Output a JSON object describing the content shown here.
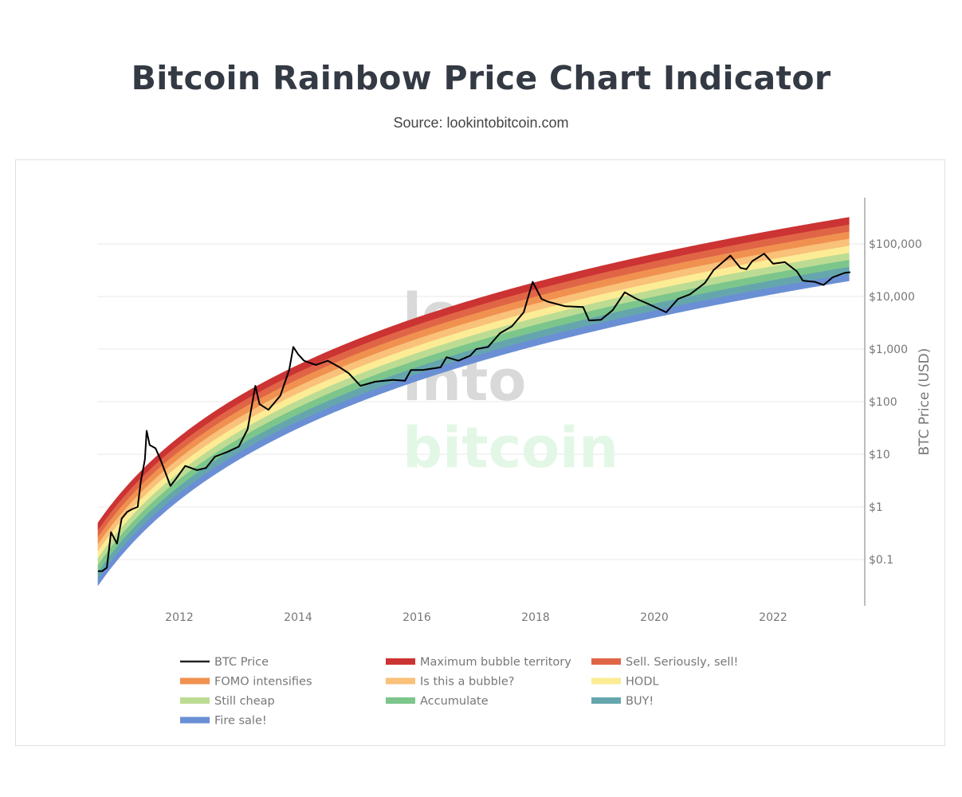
{
  "header": {
    "title": "Bitcoin Rainbow Price Chart Indicator",
    "source": "Source: lookintobitcoin.com"
  },
  "watermark": {
    "logo_text": [
      "look",
      "into",
      "bitcoin"
    ],
    "colors": [
      "#d9d9d9",
      "#d9d9d9",
      "#e3f7e6"
    ]
  },
  "chart_data": {
    "type": "area",
    "title": "",
    "ylabel": "BTC Price (USD)",
    "xlabel": "",
    "y_scale": "log",
    "ylim": [
      0.013,
      760000
    ],
    "xlim": [
      2010.63,
      2023.3
    ],
    "y_ticks": [
      {
        "value": 100000,
        "label": "$100,000"
      },
      {
        "value": 10000,
        "label": "$10,000"
      },
      {
        "value": 1000,
        "label": "$1,000"
      },
      {
        "value": 100,
        "label": "$100"
      },
      {
        "value": 10,
        "label": "$10"
      },
      {
        "value": 1,
        "label": "$1"
      },
      {
        "value": 0.1,
        "label": "$0.1"
      }
    ],
    "x_ticks": [
      {
        "value": 2012,
        "label": "2012"
      },
      {
        "value": 2014,
        "label": "2014"
      },
      {
        "value": 2016,
        "label": "2016"
      },
      {
        "value": 2018,
        "label": "2018"
      },
      {
        "value": 2020,
        "label": "2020"
      },
      {
        "value": 2022,
        "label": "2022"
      }
    ],
    "grid": "horizontal",
    "legend_position": "bottom",
    "bands": [
      {
        "name": "Fire sale!",
        "color": "#6a8fd4"
      },
      {
        "name": "BUY!",
        "color": "#65a6ad"
      },
      {
        "name": "Accumulate",
        "color": "#7cc68c"
      },
      {
        "name": "Still cheap",
        "color": "#bddc93"
      },
      {
        "name": "HODL",
        "color": "#fcec95"
      },
      {
        "name": "Is this a bubble?",
        "color": "#f9c17a"
      },
      {
        "name": "FOMO intensifies",
        "color": "#f09150"
      },
      {
        "name": "Sell. Seriously, sell!",
        "color": "#e06546"
      },
      {
        "name": "Maximum bubble territory",
        "color": "#cc3333"
      }
    ],
    "band_lower_edge": [
      [
        2010.63,
        0.033
      ],
      [
        2012,
        1.3
      ],
      [
        2014,
        30
      ],
      [
        2016,
        250
      ],
      [
        2018,
        1200
      ],
      [
        2020,
        4000
      ],
      [
        2022,
        11000
      ],
      [
        2023.3,
        20000
      ]
    ],
    "band_upper_edge": [
      [
        2010.63,
        0.51
      ],
      [
        2012,
        21
      ],
      [
        2014,
        480
      ],
      [
        2016,
        4000
      ],
      [
        2018,
        19000
      ],
      [
        2020,
        64000
      ],
      [
        2022,
        175000
      ],
      [
        2023.3,
        330000
      ]
    ],
    "series": [
      {
        "name": "BTC Price",
        "color": "#000000",
        "points": [
          [
            2010.63,
            0.06
          ],
          [
            2010.7,
            0.06
          ],
          [
            2010.78,
            0.07
          ],
          [
            2010.85,
            0.33
          ],
          [
            2010.95,
            0.2
          ],
          [
            2011.03,
            0.6
          ],
          [
            2011.12,
            0.8
          ],
          [
            2011.2,
            0.9
          ],
          [
            2011.3,
            1.0
          ],
          [
            2011.35,
            3
          ],
          [
            2011.42,
            8
          ],
          [
            2011.45,
            28
          ],
          [
            2011.5,
            15
          ],
          [
            2011.6,
            13
          ],
          [
            2011.68,
            8
          ],
          [
            2011.75,
            5
          ],
          [
            2011.85,
            2.5
          ],
          [
            2011.95,
            3.5
          ],
          [
            2012.1,
            6
          ],
          [
            2012.3,
            5
          ],
          [
            2012.45,
            5.5
          ],
          [
            2012.6,
            9
          ],
          [
            2012.8,
            11
          ],
          [
            2013.0,
            14
          ],
          [
            2013.15,
            30
          ],
          [
            2013.28,
            200
          ],
          [
            2013.35,
            90
          ],
          [
            2013.5,
            70
          ],
          [
            2013.7,
            130
          ],
          [
            2013.85,
            400
          ],
          [
            2013.92,
            1100
          ],
          [
            2014.0,
            800
          ],
          [
            2014.1,
            600
          ],
          [
            2014.3,
            500
          ],
          [
            2014.5,
            600
          ],
          [
            2014.7,
            450
          ],
          [
            2014.85,
            350
          ],
          [
            2015.05,
            200
          ],
          [
            2015.3,
            240
          ],
          [
            2015.6,
            260
          ],
          [
            2015.8,
            250
          ],
          [
            2015.9,
            400
          ],
          [
            2016.1,
            400
          ],
          [
            2016.4,
            450
          ],
          [
            2016.5,
            700
          ],
          [
            2016.7,
            600
          ],
          [
            2016.9,
            750
          ],
          [
            2017.0,
            1000
          ],
          [
            2017.2,
            1100
          ],
          [
            2017.4,
            2000
          ],
          [
            2017.6,
            2700
          ],
          [
            2017.8,
            5000
          ],
          [
            2017.95,
            19000
          ],
          [
            2018.1,
            9000
          ],
          [
            2018.2,
            8000
          ],
          [
            2018.5,
            6500
          ],
          [
            2018.8,
            6300
          ],
          [
            2018.9,
            3500
          ],
          [
            2019.1,
            3600
          ],
          [
            2019.3,
            5500
          ],
          [
            2019.5,
            12000
          ],
          [
            2019.7,
            9000
          ],
          [
            2019.9,
            7200
          ],
          [
            2020.2,
            5000
          ],
          [
            2020.4,
            9000
          ],
          [
            2020.6,
            11000
          ],
          [
            2020.85,
            18000
          ],
          [
            2021.0,
            32000
          ],
          [
            2021.28,
            60000
          ],
          [
            2021.45,
            35000
          ],
          [
            2021.55,
            33000
          ],
          [
            2021.65,
            47000
          ],
          [
            2021.85,
            65000
          ],
          [
            2022.0,
            42000
          ],
          [
            2022.2,
            45000
          ],
          [
            2022.4,
            30000
          ],
          [
            2022.5,
            20000
          ],
          [
            2022.7,
            19000
          ],
          [
            2022.85,
            16500
          ],
          [
            2023.0,
            23000
          ],
          [
            2023.2,
            28000
          ],
          [
            2023.3,
            29000
          ]
        ]
      }
    ],
    "legend": [
      {
        "label": "BTC Price",
        "color": "#222222",
        "kind": "line"
      },
      {
        "label": "Maximum bubble territory",
        "color": "#cc3333",
        "kind": "band"
      },
      {
        "label": "Sell. Seriously, sell!",
        "color": "#e06546",
        "kind": "band"
      },
      {
        "label": "FOMO intensifies",
        "color": "#f09150",
        "kind": "band"
      },
      {
        "label": "Is this a bubble?",
        "color": "#f9c17a",
        "kind": "band"
      },
      {
        "label": "HODL",
        "color": "#fcec95",
        "kind": "band"
      },
      {
        "label": "Still cheap",
        "color": "#bddc93",
        "kind": "band"
      },
      {
        "label": "Accumulate",
        "color": "#7cc68c",
        "kind": "band"
      },
      {
        "label": "BUY!",
        "color": "#65a6ad",
        "kind": "band"
      },
      {
        "label": "Fire sale!",
        "color": "#6a8fd4",
        "kind": "band"
      }
    ]
  }
}
